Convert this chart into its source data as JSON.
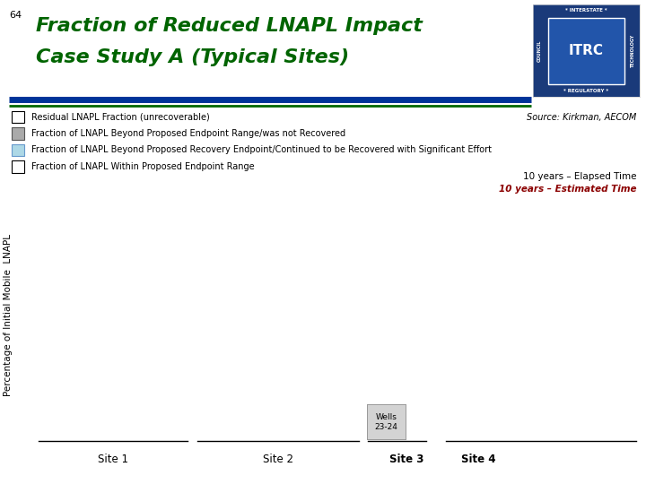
{
  "slide_number": "64",
  "title_line1": "Fraction of Reduced LNAPL Impact",
  "title_line2": "Case Study A (Typical Sites)",
  "title_color": "#006400",
  "background_color": "#ffffff",
  "legend_items": [
    {
      "label": "Residual LNAPL Fraction (unrecoverable)",
      "facecolor": "#ffffff",
      "edgecolor": "#000000"
    },
    {
      "label": "Fraction of LNAPL Beyond Proposed Endpoint Range/was not Recovered",
      "facecolor": "#aaaaaa",
      "edgecolor": "#555555"
    },
    {
      "label": "Fraction of LNAPL Beyond Proposed Recovery Endpoint/Continued to be Recovered with Significant Effort",
      "facecolor": "#add8e6",
      "edgecolor": "#6699cc"
    },
    {
      "label": "Fraction of LNAPL Within Proposed Endpoint Range",
      "facecolor": "#ffffff",
      "edgecolor": "#000000"
    }
  ],
  "source_text": "Source: Kirkman, AECOM",
  "elapsed_time_text": "10 years – Elapsed Time",
  "estimated_time_text": "10 years – Estimated Time",
  "elapsed_time_color": "#000000",
  "estimated_time_color": "#8b0000",
  "ylabel": "Percentage of Initial Mobile  LNAPL",
  "site_labels": [
    "Site 1",
    "Site 2",
    "Site 3",
    "Site 4"
  ],
  "wells_label": "Wells\n23-24",
  "wells_box_color": "#d3d3d3",
  "bar_blue": "#003399",
  "bar_green": "#006600",
  "logo_bg": "#1a3a7a",
  "logo_inner_bg": "#2255aa"
}
